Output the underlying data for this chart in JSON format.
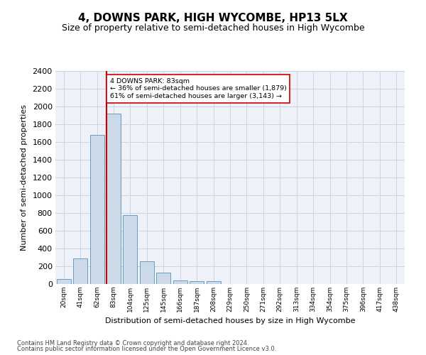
{
  "title": "4, DOWNS PARK, HIGH WYCOMBE, HP13 5LX",
  "subtitle": "Size of property relative to semi-detached houses in High Wycombe",
  "xlabel": "Distribution of semi-detached houses by size in High Wycombe",
  "ylabel": "Number of semi-detached properties",
  "bar_labels": [
    "20sqm",
    "41sqm",
    "62sqm",
    "83sqm",
    "104sqm",
    "125sqm",
    "145sqm",
    "166sqm",
    "187sqm",
    "208sqm",
    "229sqm",
    "250sqm",
    "271sqm",
    "292sqm",
    "313sqm",
    "334sqm",
    "354sqm",
    "375sqm",
    "396sqm",
    "417sqm",
    "438sqm"
  ],
  "bar_values": [
    60,
    290,
    1680,
    1920,
    780,
    255,
    130,
    40,
    30,
    30,
    0,
    0,
    0,
    0,
    0,
    0,
    0,
    0,
    0,
    0,
    0
  ],
  "bar_color": "#ccd9e8",
  "bar_edge_color": "#6a9cbf",
  "marker_bar_index": 3,
  "marker_color": "#cc0000",
  "annotation_line1": "4 DOWNS PARK: 83sqm",
  "annotation_line2": "← 36% of semi-detached houses are smaller (1,879)",
  "annotation_line3": "61% of semi-detached houses are larger (3,143) →",
  "annotation_box_color": "#ffffff",
  "annotation_border_color": "#cc0000",
  "ylim": [
    0,
    2400
  ],
  "yticks": [
    0,
    200,
    400,
    600,
    800,
    1000,
    1200,
    1400,
    1600,
    1800,
    2000,
    2200,
    2400
  ],
  "footer_line1": "Contains HM Land Registry data © Crown copyright and database right 2024.",
  "footer_line2": "Contains public sector information licensed under the Open Government Licence v3.0.",
  "plot_bg_color": "#eef2f8",
  "grid_color": "#c8d4e4",
  "title_fontsize": 11,
  "subtitle_fontsize": 9,
  "footer_fontsize": 6,
  "ylabel_fontsize": 8,
  "xlabel_fontsize": 8,
  "ytick_fontsize": 8,
  "xtick_fontsize": 6.5
}
